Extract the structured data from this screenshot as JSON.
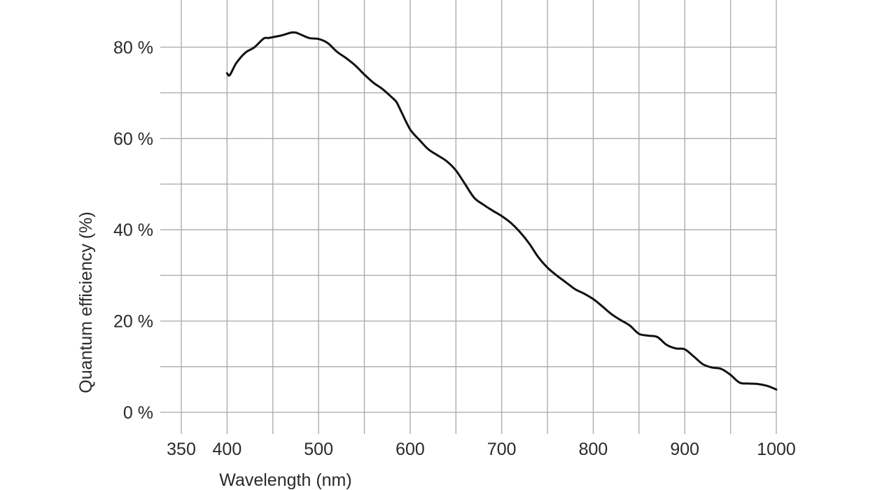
{
  "chart_data": {
    "type": "line",
    "title": "",
    "xlabel": "Wavelength (nm)",
    "ylabel": "Quantum efficiency (%)",
    "xlim": [
      350,
      1000
    ],
    "ylim": [
      0,
      90
    ],
    "x_ticks": [
      350,
      400,
      500,
      600,
      700,
      800,
      900,
      1000
    ],
    "x_tick_labels": [
      "350",
      "400",
      "500",
      "600",
      "700",
      "800",
      "900",
      "1000"
    ],
    "y_ticks": [
      0,
      20,
      40,
      60,
      80
    ],
    "y_tick_labels": [
      "0 %",
      "20 %",
      "40 %",
      "60 %",
      "80 %"
    ],
    "x_gridlines": [
      350,
      400,
      450,
      500,
      550,
      600,
      650,
      700,
      750,
      800,
      850,
      900,
      950,
      1000
    ],
    "y_gridlines": [
      0,
      10,
      20,
      30,
      40,
      50,
      60,
      70,
      80
    ],
    "grid": true,
    "legend": "none",
    "line_color": "#111111",
    "grid_color": "#a8a8a8",
    "series": [
      {
        "x": [
          400,
          403,
          410,
          420,
          430,
          440,
          445,
          450,
          460,
          470,
          475,
          480,
          490,
          500,
          510,
          520,
          530,
          540,
          550,
          560,
          570,
          580,
          585,
          590,
          600,
          610,
          620,
          630,
          640,
          650,
          660,
          670,
          680,
          690,
          700,
          710,
          720,
          730,
          740,
          750,
          760,
          770,
          780,
          790,
          800,
          810,
          820,
          830,
          840,
          850,
          860,
          870,
          880,
          890,
          900,
          910,
          920,
          930,
          940,
          950,
          960,
          970,
          980,
          990,
          1000
        ],
        "y": [
          74.3,
          73.9,
          76.5,
          78.8,
          80.0,
          81.9,
          82.0,
          82.2,
          82.6,
          83.2,
          83.2,
          82.8,
          82.0,
          81.8,
          80.9,
          79.0,
          77.6,
          76.0,
          74.0,
          72.2,
          70.8,
          69.0,
          68.0,
          66.0,
          62.0,
          59.7,
          57.6,
          56.3,
          55.0,
          53.0,
          50.0,
          47.0,
          45.5,
          44.2,
          43.0,
          41.5,
          39.5,
          37.0,
          34.0,
          31.7,
          30.0,
          28.5,
          27.0,
          26.0,
          24.8,
          23.2,
          21.5,
          20.2,
          19.0,
          17.2,
          16.8,
          16.5,
          14.8,
          14.0,
          13.8,
          12.2,
          10.5,
          9.8,
          9.5,
          8.2,
          6.5,
          6.3,
          6.2,
          5.8,
          5.0
        ]
      }
    ]
  }
}
